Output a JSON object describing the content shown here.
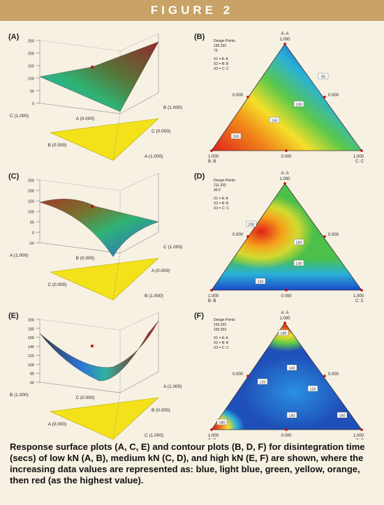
{
  "header": {
    "title": "FIGURE 2"
  },
  "panels": [
    {
      "label": "(A)",
      "kind": "surface",
      "z_ticks": [
        "250",
        "200",
        "150",
        "100",
        "50",
        "0"
      ],
      "axis_labels": [
        "C (1.000)",
        "A (0.000)",
        "B (1.000)",
        "B (0.000)",
        "C (0.000)",
        "A (1.000)"
      ]
    },
    {
      "label": "(B)",
      "kind": "ternary",
      "legend": [
        "Design Points",
        "195.333",
        "73",
        "X1 = A: A",
        "X2 = B: B",
        "X3 = C: C"
      ],
      "vertex_labels": [
        "A: A",
        "1.000",
        "0.000",
        "0.000",
        "1.000",
        "B: B",
        "0.000",
        "1.000",
        "C: C"
      ],
      "contour_labels": [
        "200",
        "150",
        "100",
        "50"
      ]
    },
    {
      "label": "(C)",
      "kind": "surface",
      "z_ticks": [
        "250",
        "200",
        "150",
        "100",
        "50",
        "0",
        "-50"
      ],
      "axis_labels": [
        "A (1.000)",
        "B (0.000)",
        "C (1.000)",
        "C (0.000)",
        "A (0.000)",
        "B (1.000)"
      ]
    },
    {
      "label": "(D)",
      "kind": "ternary",
      "legend": [
        "Design Points",
        "211.333",
        "99.5",
        "X1 = A: A",
        "X2 = B: B",
        "X3 = C: C"
      ],
      "vertex_labels": [
        "A: A",
        "1.000",
        "0.000",
        "0.000",
        "1.000",
        "B: B",
        "0.000",
        "1.000",
        "C: C"
      ],
      "contour_labels": [
        "200",
        "150",
        "130",
        "150"
      ]
    },
    {
      "label": "(E)",
      "kind": "surface",
      "z_ticks": [
        "200",
        "180",
        "160",
        "140",
        "120",
        "100",
        "80",
        "60"
      ],
      "axis_labels": [
        "B (1.000)",
        "C (0.000)",
        "A (1.000)",
        "A (0.000)",
        "B (0.000)",
        "C (1.000)"
      ]
    },
    {
      "label": "(F)",
      "kind": "ternary",
      "legend": [
        "Design Points",
        "193.333",
        "100.333",
        "X1 = A: A",
        "X2 = B: B",
        "X3 = C: C"
      ],
      "vertex_labels": [
        "A: A",
        "1.000",
        "0.000",
        "0.000",
        "1.000",
        "B: B",
        "0.000",
        "1.000",
        "C: C"
      ],
      "contour_labels": [
        "180",
        "140",
        "120",
        "120",
        "140",
        "160",
        "180"
      ]
    }
  ],
  "caption": "Response surface plots (A, C, E) and contour plots (B, D, F) for disintegration time (secs) of low kN (A, B), medium kN (C, D), and high kN (E, F) are shown, where the increasing data values are represented as: blue, light blue, green, yellow, orange, then red (as the highest value)."
}
